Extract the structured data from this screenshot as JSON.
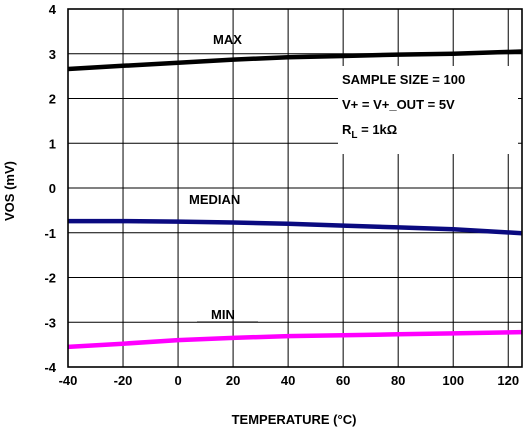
{
  "chart_data": {
    "type": "line",
    "xlabel": "TEMPERATURE (°C)",
    "ylabel": "VOS (mV)",
    "xlim": [
      -40,
      125
    ],
    "ylim": [
      -4,
      4
    ],
    "grid": true,
    "x_ticks": [
      "-40",
      "-20",
      "0",
      "20",
      "40",
      "60",
      "80",
      "100",
      "120"
    ],
    "y_ticks": [
      "4",
      "3",
      "2",
      "1",
      "0",
      "-1",
      "-2",
      "-3",
      "-4"
    ],
    "series": [
      {
        "name": "MAX",
        "color": "#000000",
        "x": [
          -40,
          -20,
          0,
          20,
          40,
          60,
          80,
          100,
          125
        ],
        "y": [
          2.66,
          2.73,
          2.8,
          2.87,
          2.92,
          2.95,
          2.98,
          3.0,
          3.05
        ]
      },
      {
        "name": "MEDIAN",
        "color": "#0a0a80",
        "x": [
          -40,
          -20,
          0,
          20,
          40,
          60,
          80,
          100,
          125
        ],
        "y": [
          -0.74,
          -0.74,
          -0.75,
          -0.77,
          -0.8,
          -0.84,
          -0.88,
          -0.92,
          -1.01
        ]
      },
      {
        "name": "MIN",
        "color": "#ff00ff",
        "x": [
          -40,
          -20,
          0,
          20,
          40,
          60,
          80,
          100,
          125
        ],
        "y": [
          -3.55,
          -3.48,
          -3.4,
          -3.35,
          -3.31,
          -3.29,
          -3.27,
          -3.25,
          -3.22
        ]
      }
    ],
    "annotations": {
      "sample_size": "SAMPLE SIZE = 100",
      "supply": "V+ = V+_OUT = 5V",
      "rl_prefix": "R",
      "rl_sub": "L",
      "rl_suffix": " = 1kΩ"
    }
  }
}
